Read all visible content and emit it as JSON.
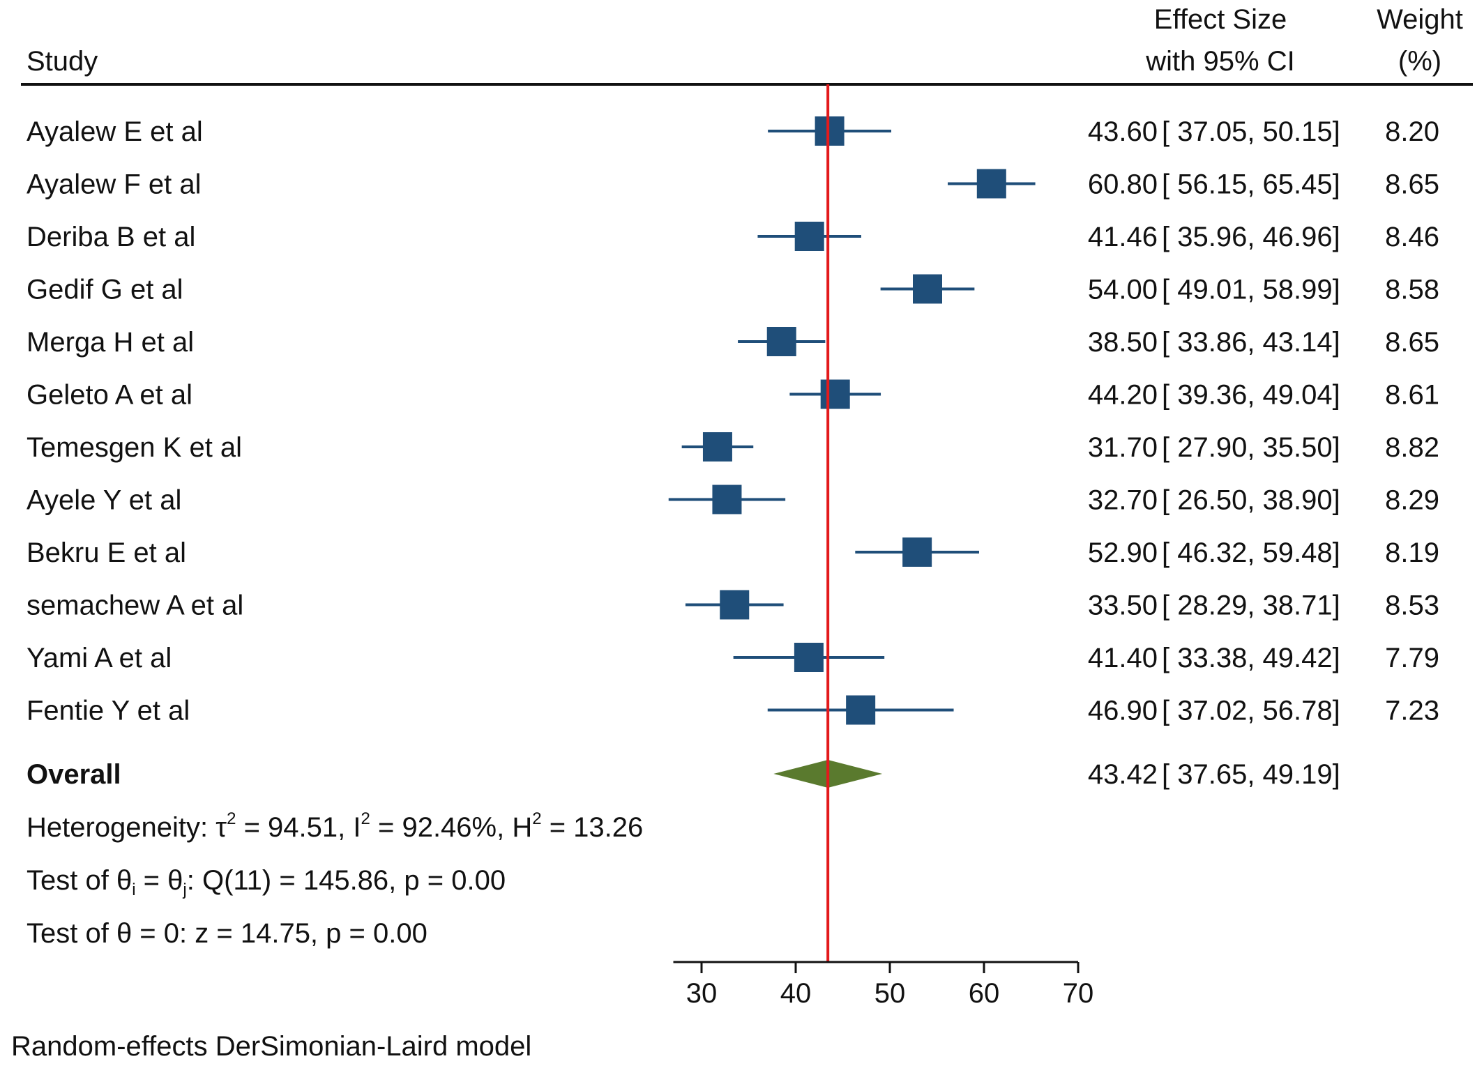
{
  "header": {
    "study": "Study",
    "effect_size_line1": "Effect Size",
    "effect_size_line2": "with 95% CI",
    "weight_line1": "Weight",
    "weight_line2": "(%)"
  },
  "chart_data": {
    "type": "forest",
    "xlim": [
      27,
      70
    ],
    "xticks": [
      30,
      40,
      50,
      60,
      70
    ],
    "reference_line": 43.42,
    "colors": {
      "marker": "#1f4e79",
      "overall": "#5a7a2e",
      "reference": "#e31a1c",
      "axis": "#111111"
    },
    "studies": [
      {
        "name": "Ayalew E et al",
        "es": 43.6,
        "lo": 37.05,
        "hi": 50.15,
        "weight": "8.20",
        "es_text": "43.60",
        "ci_text": "[ 37.05, 50.15]"
      },
      {
        "name": "Ayalew F et al",
        "es": 60.8,
        "lo": 56.15,
        "hi": 65.45,
        "weight": "8.65",
        "es_text": "60.80",
        "ci_text": "[ 56.15, 65.45]"
      },
      {
        "name": "Deriba B et al",
        "es": 41.46,
        "lo": 35.96,
        "hi": 46.96,
        "weight": "8.46",
        "es_text": "41.46",
        "ci_text": "[ 35.96, 46.96]"
      },
      {
        "name": "Gedif G et al",
        "es": 54.0,
        "lo": 49.01,
        "hi": 58.99,
        "weight": "8.58",
        "es_text": "54.00",
        "ci_text": "[ 49.01, 58.99]"
      },
      {
        "name": "Merga H et al",
        "es": 38.5,
        "lo": 33.86,
        "hi": 43.14,
        "weight": "8.65",
        "es_text": "38.50",
        "ci_text": "[ 33.86, 43.14]"
      },
      {
        "name": "Geleto A et al",
        "es": 44.2,
        "lo": 39.36,
        "hi": 49.04,
        "weight": "8.61",
        "es_text": "44.20",
        "ci_text": "[ 39.36, 49.04]"
      },
      {
        "name": "Temesgen K et al",
        "es": 31.7,
        "lo": 27.9,
        "hi": 35.5,
        "weight": "8.82",
        "es_text": "31.70",
        "ci_text": "[ 27.90, 35.50]"
      },
      {
        "name": "Ayele Y et al",
        "es": 32.7,
        "lo": 26.5,
        "hi": 38.9,
        "weight": "8.29",
        "es_text": "32.70",
        "ci_text": "[ 26.50, 38.90]"
      },
      {
        "name": "Bekru E et al",
        "es": 52.9,
        "lo": 46.32,
        "hi": 59.48,
        "weight": "8.19",
        "es_text": "52.90",
        "ci_text": "[ 46.32, 59.48]"
      },
      {
        "name": "semachew A et al",
        "es": 33.5,
        "lo": 28.29,
        "hi": 38.71,
        "weight": "8.53",
        "es_text": "33.50",
        "ci_text": "[ 28.29, 38.71]"
      },
      {
        "name": "Yami A et al",
        "es": 41.4,
        "lo": 33.38,
        "hi": 49.42,
        "weight": "7.79",
        "es_text": "41.40",
        "ci_text": "[ 33.38, 49.42]"
      },
      {
        "name": "Fentie Y et al",
        "es": 46.9,
        "lo": 37.02,
        "hi": 56.78,
        "weight": "7.23",
        "es_text": "46.90",
        "ci_text": "[ 37.02, 56.78]"
      }
    ],
    "overall": {
      "name": "Overall",
      "es": 43.42,
      "lo": 37.65,
      "hi": 49.19,
      "es_text": "43.42",
      "ci_text": "[ 37.65, 49.19]"
    },
    "heterogeneity": {
      "prefix": "Heterogeneity: ",
      "tau_symbol": "τ",
      "tau_sup": "2",
      "tau_value": " = 94.51, ",
      "i_symbol": "I",
      "i_sup": "2",
      "i_value": " = 92.46%, ",
      "h_symbol": "H",
      "h_sup": "2",
      "h_value": " = 13.26"
    },
    "test_ij": {
      "prefix": "Test of θ",
      "sub_i": "i",
      "mid": " = θ",
      "sub_j": "j",
      "suffix": ": Q(11) = 145.86, p = 0.00"
    },
    "test_zero": "Test of θ = 0: z = 14.75, p = 0.00",
    "model_note": "Random-effects DerSimonian-Laird model"
  }
}
